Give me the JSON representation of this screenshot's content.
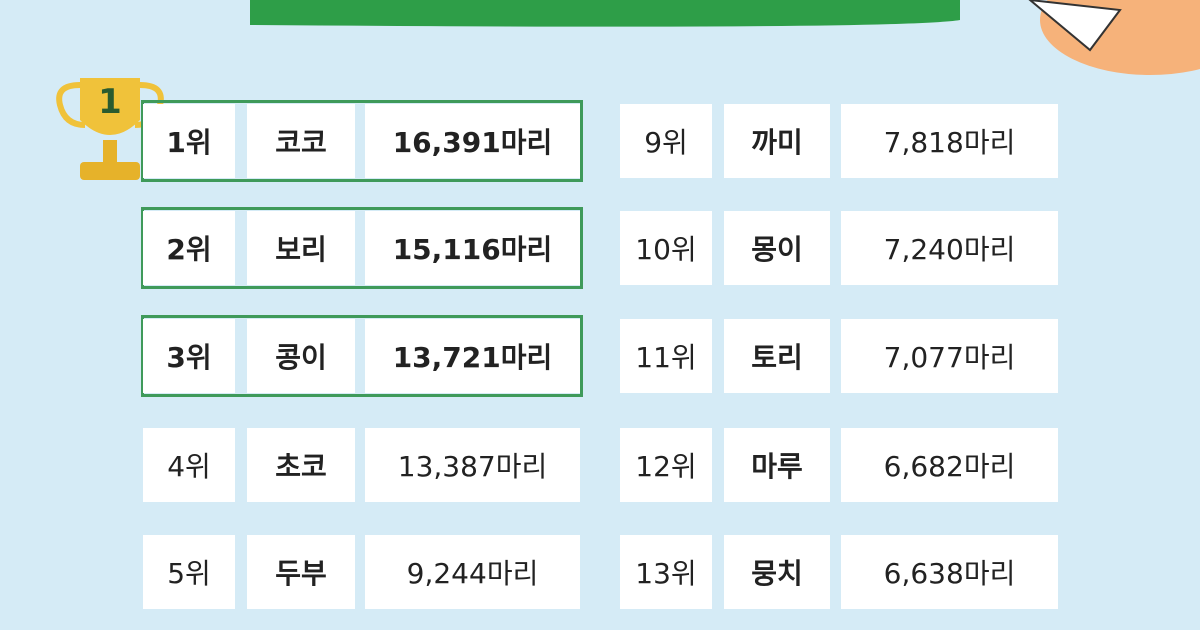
{
  "trophy_label": "1",
  "columns": [
    {
      "rows": [
        {
          "rank": "1위",
          "name": "코코",
          "count": "16,391마리"
        },
        {
          "rank": "2위",
          "name": "보리",
          "count": "15,116마리"
        },
        {
          "rank": "3위",
          "name": "콩이",
          "count": "13,721마리"
        },
        {
          "rank": "4위",
          "name": "초코",
          "count": "13,387마리"
        },
        {
          "rank": "5위",
          "name": "두부",
          "count": "9,244마리"
        }
      ]
    },
    {
      "rows": [
        {
          "rank": "9위",
          "name": "까미",
          "count": "7,818마리"
        },
        {
          "rank": "10위",
          "name": "몽이",
          "count": "7,240마리"
        },
        {
          "rank": "11위",
          "name": "토리",
          "count": "7,077마리"
        },
        {
          "rank": "12위",
          "name": "마루",
          "count": "6,682마리"
        },
        {
          "rank": "13위",
          "name": "뭉치",
          "count": "6,638마리"
        }
      ]
    }
  ]
}
